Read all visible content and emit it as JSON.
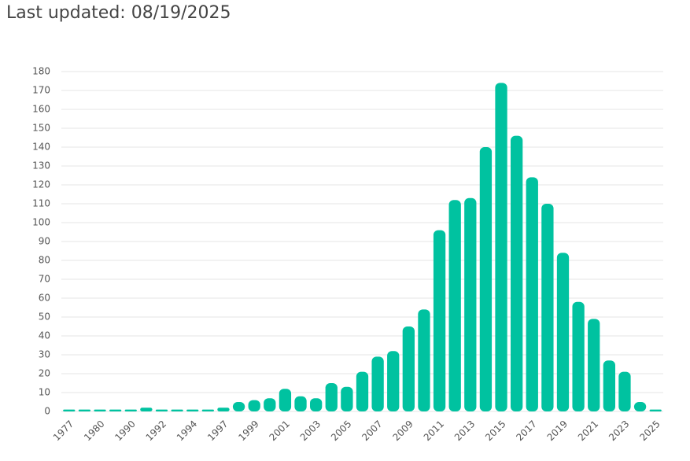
{
  "title": "Last updated: 08/19/2025",
  "chart_data": {
    "type": "bar",
    "categories": [
      "1977",
      null,
      "1980",
      null,
      "1990",
      null,
      "1992",
      null,
      "1994",
      null,
      "1997",
      null,
      "1999",
      null,
      "2001",
      null,
      "2003",
      null,
      "2005",
      null,
      "2007",
      null,
      "2009",
      null,
      "2011",
      null,
      "2013",
      null,
      "2015",
      null,
      "2017",
      null,
      "2019",
      null,
      "2021",
      null,
      "2023",
      null,
      "2025"
    ],
    "values": [
      1,
      1,
      1,
      1,
      1,
      2,
      1,
      1,
      1,
      1,
      2,
      5,
      6,
      7,
      12,
      8,
      7,
      15,
      13,
      21,
      29,
      32,
      45,
      54,
      96,
      112,
      113,
      140,
      174,
      146,
      124,
      110,
      84,
      58,
      49,
      27,
      21,
      5,
      1
    ],
    "color": "#00c2a0",
    "ylim": [
      0,
      180
    ],
    "yticks": [
      0,
      10,
      20,
      30,
      40,
      50,
      60,
      70,
      80,
      90,
      100,
      110,
      120,
      130,
      140,
      150,
      160,
      170,
      180
    ],
    "grid": true
  }
}
